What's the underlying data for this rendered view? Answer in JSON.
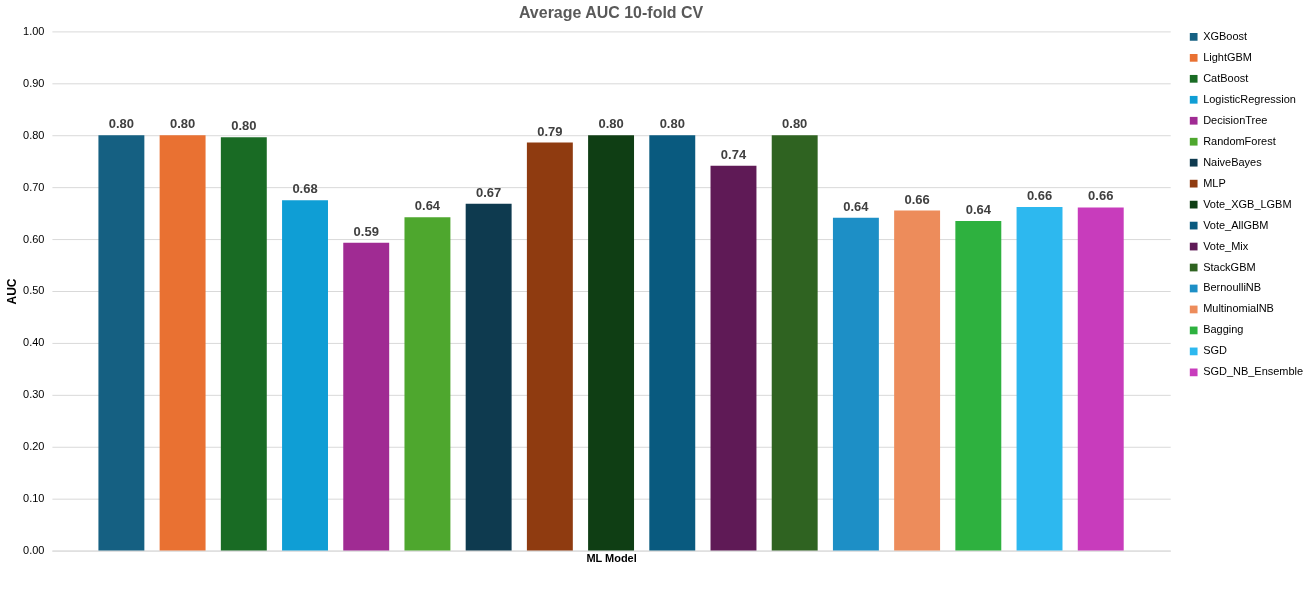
{
  "chart_data": {
    "type": "bar",
    "title": "Average AUC 10-fold CV",
    "xlabel": "ML Model",
    "ylabel": "AUC",
    "categories": [
      null
    ],
    "series": [
      {
        "name": "XGBoost",
        "color": "#156082",
        "values": [
          0.8
        ],
        "value_labels": [
          "0.80"
        ]
      },
      {
        "name": "LightGBM",
        "color": "#e97132",
        "values": [
          0.8
        ],
        "value_labels": [
          "0.80"
        ]
      },
      {
        "name": "CatBoost",
        "color": "#196b24",
        "values": [
          0.796
        ],
        "value_labels": [
          "0.80"
        ]
      },
      {
        "name": "LogisticRegression",
        "color": "#0f9ed5",
        "values": [
          0.675
        ],
        "value_labels": [
          "0.68"
        ]
      },
      {
        "name": "DecisionTree",
        "color": "#a02b93",
        "values": [
          0.593
        ],
        "value_labels": [
          "0.59"
        ]
      },
      {
        "name": "RandomForest",
        "color": "#4ea72e",
        "values": [
          0.642
        ],
        "value_labels": [
          "0.64"
        ]
      },
      {
        "name": "NaiveBayes",
        "color": "#0e3a4f",
        "values": [
          0.668
        ],
        "value_labels": [
          "0.67"
        ]
      },
      {
        "name": "MLP",
        "color": "#8f3b10",
        "values": [
          0.786
        ],
        "value_labels": [
          "0.79"
        ]
      },
      {
        "name": "Vote_XGB_LGBM",
        "color": "#0f3e14",
        "values": [
          0.8
        ],
        "value_labels": [
          "0.80"
        ]
      },
      {
        "name": "Vote_AllGBM",
        "color": "#095a7f",
        "values": [
          0.8
        ],
        "value_labels": [
          "0.80"
        ]
      },
      {
        "name": "Vote_Mix",
        "color": "#5f1a56",
        "values": [
          0.741
        ],
        "value_labels": [
          "0.74"
        ]
      },
      {
        "name": "StackGBM",
        "color": "#2f6321",
        "values": [
          0.8
        ],
        "value_labels": [
          "0.80"
        ]
      },
      {
        "name": "BernoulliNB",
        "color": "#1d8fc6",
        "values": [
          0.641
        ],
        "value_labels": [
          "0.64"
        ]
      },
      {
        "name": "MultinomialNB",
        "color": "#ed8c5b",
        "values": [
          0.655
        ],
        "value_labels": [
          "0.66"
        ]
      },
      {
        "name": "Bagging",
        "color": "#2eb13f",
        "values": [
          0.635
        ],
        "value_labels": [
          "0.64"
        ]
      },
      {
        "name": "SGD",
        "color": "#2db8ef",
        "values": [
          0.662
        ],
        "value_labels": [
          "0.66"
        ]
      },
      {
        "name": "SGD_NB_Ensemble",
        "color": "#c83cbc",
        "values": [
          0.661
        ],
        "value_labels": [
          "0.66"
        ]
      }
    ],
    "ylim": [
      0,
      1
    ],
    "yticks": [
      {
        "value": 0,
        "label": "0.00"
      },
      {
        "value": 0.1,
        "label": "0.10"
      },
      {
        "value": 0.2,
        "label": "0.20"
      },
      {
        "value": 0.3,
        "label": "0.30"
      },
      {
        "value": 0.4,
        "label": "0.40"
      },
      {
        "value": 0.5,
        "label": "0.50"
      },
      {
        "value": 0.6,
        "label": "0.60"
      },
      {
        "value": 0.7,
        "label": "0.70"
      },
      {
        "value": 0.8,
        "label": "0.80"
      },
      {
        "value": 0.9,
        "label": "0.90"
      },
      {
        "value": 1.0,
        "label": "1.00"
      }
    ],
    "tick_labels": "y",
    "grid": "y",
    "legend": "right"
  }
}
